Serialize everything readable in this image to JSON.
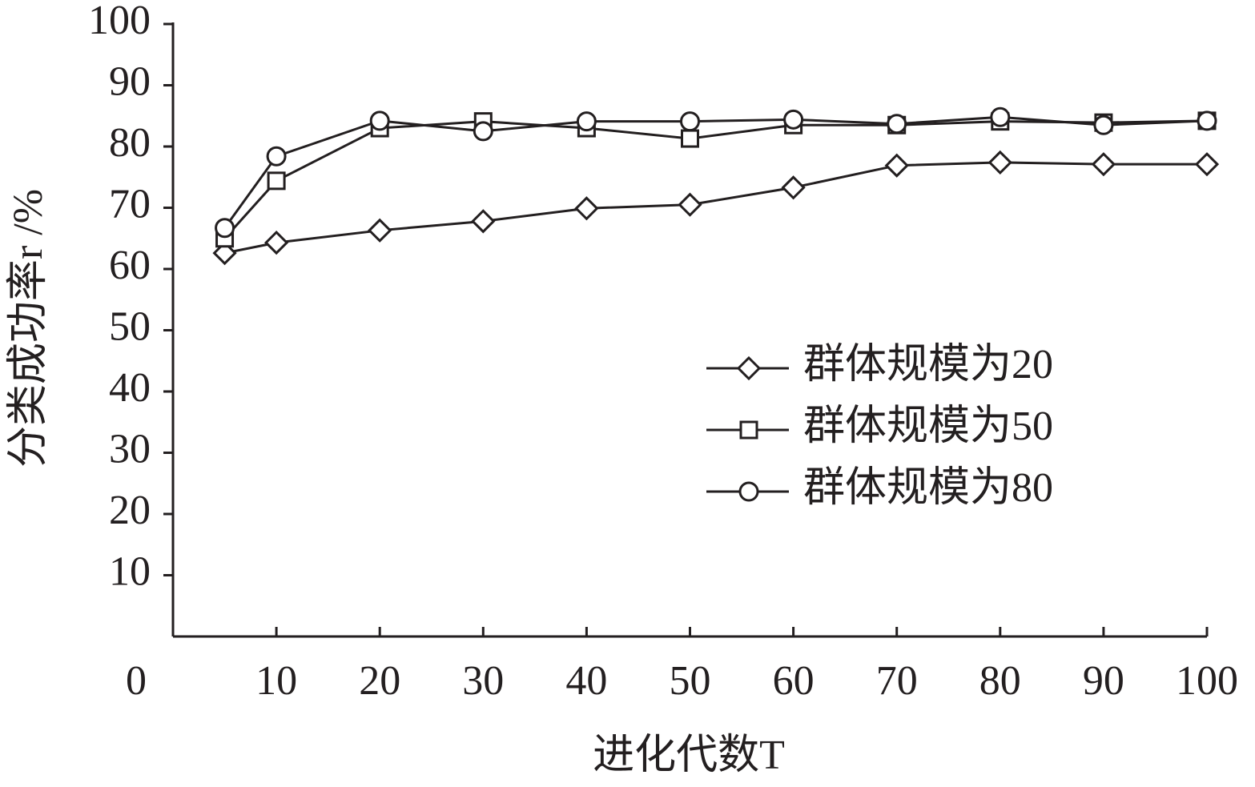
{
  "chart_data": {
    "type": "line",
    "y_label": "分类成功率r /%",
    "x_label": "进化代数T",
    "x": [
      5,
      10,
      20,
      30,
      40,
      50,
      60,
      70,
      80,
      90,
      100
    ],
    "series": [
      {
        "name": "群体规模为20",
        "marker": "diamond",
        "color": "#231f20",
        "values": [
          62.6,
          64.3,
          66.3,
          67.8,
          69.9,
          70.5,
          73.3,
          76.9,
          77.4,
          77.1,
          77.1
        ]
      },
      {
        "name": "群体规模为50",
        "marker": "square",
        "color": "#231f20",
        "values": [
          65.0,
          74.4,
          83.0,
          84.1,
          83.0,
          81.3,
          83.5,
          83.5,
          84.1,
          83.9,
          84.2
        ]
      },
      {
        "name": "群体规模为80",
        "marker": "circle",
        "color": "#231f20",
        "values": [
          66.7,
          78.4,
          84.2,
          82.5,
          84.1,
          84.1,
          84.4,
          83.7,
          84.8,
          83.5,
          84.2
        ]
      }
    ],
    "xlim": [
      0,
      100
    ],
    "xticks": [
      0,
      10,
      20,
      30,
      40,
      50,
      60,
      70,
      80,
      90,
      100
    ],
    "ylim": [
      0,
      100
    ],
    "yticks": [
      10,
      20,
      30,
      40,
      50,
      60,
      70,
      80,
      90,
      100
    ],
    "grid": false,
    "legend": "right"
  }
}
